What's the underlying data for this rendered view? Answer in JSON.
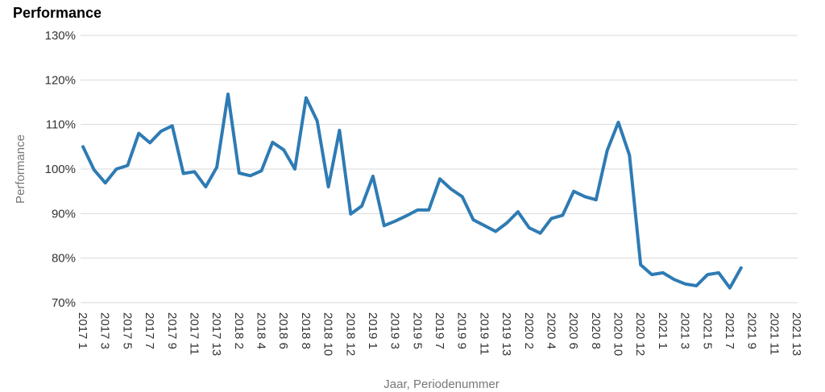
{
  "chart_data": {
    "type": "line",
    "title": "Performance",
    "y_label": "Performance",
    "x_label": "Jaar, Periodenummer",
    "categories": [
      "2017 1",
      null,
      "2017 3",
      null,
      "2017 5",
      null,
      "2017 7",
      null,
      "2017 9",
      null,
      "2017 11",
      null,
      "2017 13",
      null,
      "2018 2",
      null,
      "2018 4",
      null,
      "2018 6",
      null,
      "2018 8",
      null,
      "2018 10",
      null,
      "2018 12",
      null,
      "2019 1",
      null,
      "2019 3",
      null,
      "2019 5",
      null,
      "2019 7",
      null,
      "2019 9",
      null,
      "2019 11",
      null,
      "2019 13",
      null,
      "2020 2",
      null,
      "2020 4",
      null,
      "2020 6",
      null,
      "2020 8",
      null,
      "2020 10",
      null,
      "2020 12",
      null,
      "2021 1",
      null,
      "2021 3",
      null,
      "2021 5",
      null,
      "2021 7",
      null,
      "2021 9",
      null,
      "2021 11",
      null,
      "2021 13"
    ],
    "series": [
      {
        "name": "Performance",
        "color": "#2e7bb4",
        "values": [
          105,
          99.8,
          96.9,
          100,
          100.8,
          108,
          105.9,
          108.5,
          109.7,
          99,
          99.4,
          96,
          100.4,
          116.8,
          99.1,
          98.5,
          99.6,
          106,
          104.3,
          100,
          116,
          110.8,
          96,
          108.7,
          89.9,
          91.7,
          98.4,
          87.3,
          88.3,
          89.5,
          90.8,
          90.8,
          97.8,
          95.5,
          93.8,
          88.6,
          87.3,
          86,
          87.9,
          90.4,
          86.8,
          85.6,
          88.9,
          89.6,
          95,
          93.8,
          93.1,
          104.2,
          110.5,
          103.1,
          78.5,
          76.3,
          76.7,
          75.2,
          74.2,
          73.8,
          76.3,
          76.7,
          73.3,
          77.8,
          null,
          null,
          null,
          null,
          null
        ]
      }
    ],
    "ylim": [
      70,
      130
    ],
    "yticks": [
      {
        "value": 70,
        "label": "70%"
      },
      {
        "value": 80,
        "label": "80%"
      },
      {
        "value": 90,
        "label": "90%"
      },
      {
        "value": 100,
        "label": "100%"
      },
      {
        "value": 110,
        "label": "110%"
      },
      {
        "value": 120,
        "label": "120%"
      },
      {
        "value": 130,
        "label": "130%"
      }
    ],
    "grid": true
  }
}
